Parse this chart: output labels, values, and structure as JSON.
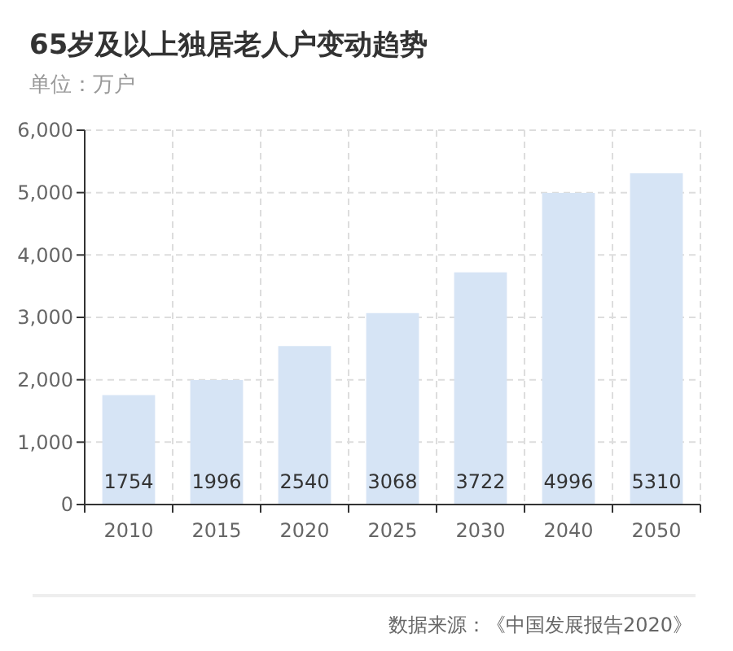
{
  "chart_data": {
    "type": "bar",
    "title": "65岁及以上独居老人户变动趋势",
    "subtitle": "单位：万户",
    "categories": [
      "2010",
      "2015",
      "2020",
      "2025",
      "2030",
      "2040",
      "2050"
    ],
    "values": [
      1754,
      1996,
      2540,
      3068,
      3722,
      4996,
      5310
    ],
    "color": "#d6e4f5",
    "data_labels": true,
    "ylim": [
      0,
      6000
    ],
    "yticks": [
      0,
      {
        "value": 1000,
        "label": "1,000"
      },
      {
        "value": 2000,
        "label": "2,000"
      },
      {
        "value": 3000,
        "label": "3,000"
      },
      {
        "value": 4000,
        "label": "4,000"
      },
      {
        "value": 5000,
        "label": "5,000"
      },
      {
        "value": 6000,
        "label": "6,000"
      }
    ],
    "grid": true,
    "annotations": [
      "数据来源：《中国发展报告2020》"
    ]
  }
}
